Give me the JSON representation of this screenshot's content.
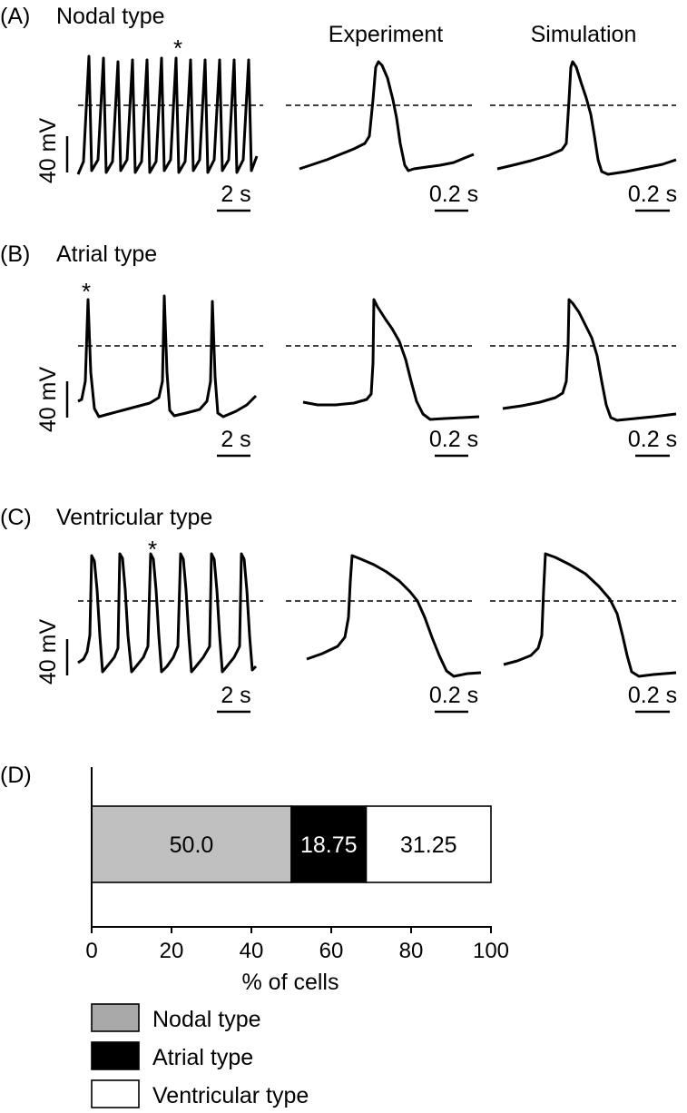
{
  "panels": [
    {
      "label": "(A)",
      "title": "Nodal type",
      "scale_voltage": "40 mV",
      "scale_time_long": "2 s",
      "scale_time_short": "0.2 s",
      "marker": "*"
    },
    {
      "label": "(B)",
      "title": "Atrial type",
      "scale_voltage": "40 mV",
      "scale_time_long": "2 s",
      "scale_time_short": "0.2 s",
      "marker": "*"
    },
    {
      "label": "(C)",
      "title": "Ventricular type",
      "scale_voltage": "40 mV",
      "scale_time_long": "2 s",
      "scale_time_short": "0.2 s",
      "marker": "*"
    }
  ],
  "column_headers": {
    "experiment": "Experiment",
    "simulation": "Simulation"
  },
  "chart_data": {
    "label": "(D)",
    "type": "bar",
    "orientation": "horizontal",
    "stacked": true,
    "xlabel": "% of cells",
    "xlim": [
      0,
      100
    ],
    "ticks": [
      "0",
      "20",
      "40",
      "60",
      "80",
      "100"
    ],
    "series": [
      {
        "name": "Nodal type",
        "value": 50.0,
        "label": "50.0",
        "color": "#c0c0c0",
        "text_color": "#000000"
      },
      {
        "name": "Atrial type",
        "value": 18.75,
        "label": "18.75",
        "color": "#000000",
        "text_color": "#ffffff"
      },
      {
        "name": "Ventricular type",
        "value": 31.25,
        "label": "31.25",
        "color": "#ffffff",
        "text_color": "#000000"
      }
    ],
    "legend": [
      {
        "name": "Nodal type",
        "color": "#a8a8a8"
      },
      {
        "name": "Atrial type",
        "color": "#000000"
      },
      {
        "name": "Ventricular type",
        "color": "#ffffff"
      }
    ]
  }
}
